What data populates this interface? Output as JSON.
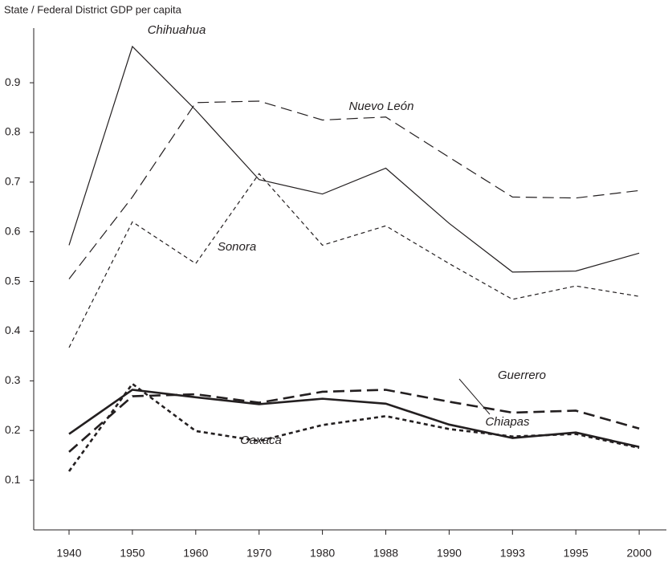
{
  "chart_data": {
    "type": "line",
    "title": "State / Federal District GDP per capita",
    "categories": [
      "1940",
      "1950",
      "1960",
      "1970",
      "1980",
      "1988",
      "1990",
      "1993",
      "1995",
      "2000"
    ],
    "ylim": [
      0,
      1.01
    ],
    "yticks": [
      0.1,
      0.2,
      0.3,
      0.4,
      0.5,
      0.6,
      0.7,
      0.8,
      0.9
    ],
    "series": [
      {
        "name": "Chihuahua",
        "color": "#231f20",
        "dash": "solid",
        "line_width": 1.2,
        "values": [
          0.573,
          0.973,
          0.845,
          0.705,
          0.676,
          0.728,
          0.617,
          0.519,
          0.521,
          0.557
        ]
      },
      {
        "name": "Nuevo León",
        "color": "#231f20",
        "dash": "long",
        "line_width": 1.2,
        "values": [
          0.505,
          0.67,
          0.86,
          0.863,
          0.825,
          0.831,
          0.75,
          0.67,
          0.668,
          0.683
        ]
      },
      {
        "name": "Sonora",
        "color": "#231f20",
        "dash": "short",
        "line_width": 1.2,
        "values": [
          0.367,
          0.62,
          0.536,
          0.717,
          0.573,
          0.612,
          0.536,
          0.464,
          0.491,
          0.47
        ]
      },
      {
        "name": "Guerrero",
        "color": "#231f20",
        "dash": "long",
        "line_width": 2.6,
        "values": [
          0.157,
          0.269,
          0.273,
          0.256,
          0.278,
          0.282,
          0.258,
          0.236,
          0.24,
          0.204
        ]
      },
      {
        "name": "Chiapas",
        "color": "#231f20",
        "dash": "solid",
        "line_width": 2.6,
        "values": [
          0.193,
          0.282,
          0.267,
          0.253,
          0.264,
          0.254,
          0.212,
          0.185,
          0.196,
          0.167
        ]
      },
      {
        "name": "Oaxaca",
        "color": "#231f20",
        "dash": "short",
        "line_width": 2.6,
        "values": [
          0.118,
          0.294,
          0.199,
          0.179,
          0.211,
          0.229,
          0.203,
          0.188,
          0.193,
          0.165
        ]
      }
    ]
  }
}
